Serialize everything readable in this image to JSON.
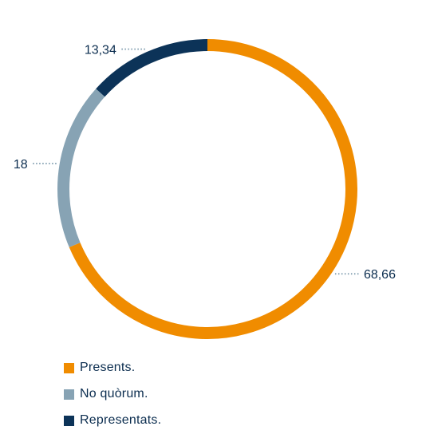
{
  "chart_data": {
    "type": "pie",
    "style": "donut",
    "slices": [
      {
        "label": "Presents.",
        "value": 68.66,
        "display": "68,66",
        "color": "#f08c00"
      },
      {
        "label": "No quòrum.",
        "value": 18,
        "display": "18",
        "color": "#87a3b4"
      },
      {
        "label": "Representats.",
        "value": 13.34,
        "display": "13,34",
        "color": "#0c3358"
      }
    ],
    "legend_position": "bottom-left",
    "label_color": "#0b2d4f",
    "leader_color": "#87a3b4"
  }
}
